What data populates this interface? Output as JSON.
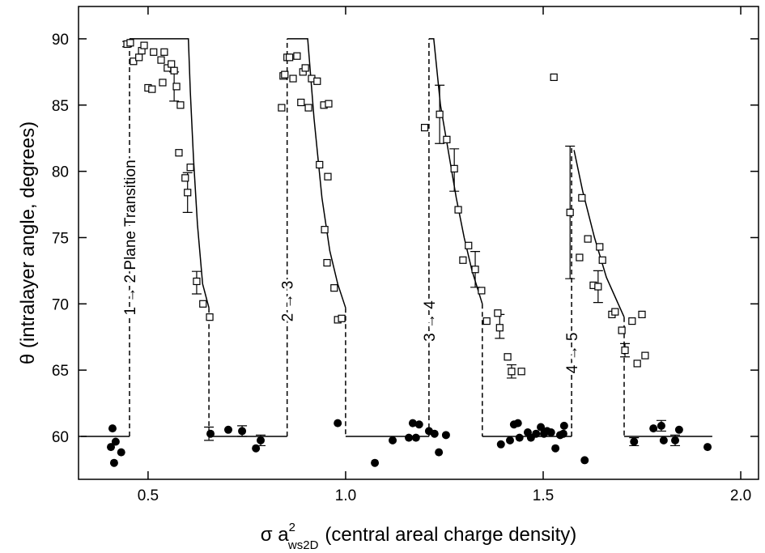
{
  "chart_data": {
    "type": "scatter",
    "xlabel": {
      "prefix": "σ a",
      "sup": "2",
      "sub": "ws2D",
      "suffix": "(central areal charge density)"
    },
    "ylabel": "θ  (intralayer angle, degrees)",
    "xlim": [
      0.324,
      2.045
    ],
    "ylim": [
      56.76,
      92.44
    ],
    "xticks": [
      0.5,
      {
        "value": 1,
        "label": "1.0"
      },
      1.5,
      {
        "value": 2,
        "label": "2.0"
      }
    ],
    "yticks": [
      60,
      65,
      70,
      75,
      80,
      85,
      90
    ],
    "annotations": [
      {
        "text": "1 → 2 Plane Transition",
        "x": 0.453,
        "y": 75
      },
      {
        "text": "2 → 3",
        "x": 0.852,
        "y": 70.2
      },
      {
        "text": "3 → 4",
        "x": 1.211,
        "y": 68.7
      },
      {
        "text": "4 → 5",
        "x": 1.572,
        "y": 66.3
      }
    ],
    "series": [
      {
        "kind": "points",
        "marker": "square",
        "color": "#000",
        "x": [
          0.447,
          0.455,
          0.463,
          0.477,
          0.484,
          0.49,
          0.5,
          0.51,
          0.514,
          0.533,
          0.537,
          0.541,
          0.549,
          0.559,
          0.566,
          0.572,
          0.582,
          0.578,
          0.594,
          0.6,
          0.607,
          0.623,
          0.639,
          0.656,
          0.838,
          0.842,
          0.846,
          0.852,
          0.858,
          0.867,
          0.877,
          0.887,
          0.892,
          0.898,
          0.906,
          0.914,
          0.928,
          0.934,
          0.945,
          0.947,
          0.957,
          0.953,
          0.955,
          0.971,
          0.98,
          0.99,
          1.2,
          1.238,
          1.256,
          1.275,
          1.285,
          1.297,
          1.311,
          1.328,
          1.344,
          1.357,
          1.385,
          1.39,
          1.41,
          1.42,
          1.445,
          1.527,
          1.568,
          1.592,
          1.598,
          1.613,
          1.627,
          1.639,
          1.643,
          1.65,
          1.674,
          1.682,
          1.699,
          1.707,
          1.725,
          1.738,
          1.75,
          1.758
        ],
        "values": [
          89.6,
          89.7,
          88.3,
          88.6,
          89.1,
          89.5,
          86.3,
          86.2,
          89,
          88.4,
          86.7,
          89,
          87.8,
          88.1,
          87.6,
          86.4,
          85,
          81.4,
          79.5,
          78.4,
          80.3,
          71.7,
          70,
          69,
          84.8,
          87.2,
          87.3,
          88.6,
          88.6,
          87,
          88.7,
          85.2,
          87.5,
          87.8,
          84.8,
          87,
          86.8,
          80.5,
          85,
          75.6,
          85.1,
          73.1,
          79.6,
          71.2,
          68.8,
          68.9,
          83.3,
          84.3,
          82.4,
          80.2,
          77.1,
          73.3,
          74.4,
          72.6,
          71,
          68.7,
          69.3,
          68.2,
          66,
          64.9,
          64.9,
          87.1,
          76.9,
          73.5,
          78,
          74.9,
          71.4,
          71.3,
          74.3,
          73.3,
          69.2,
          69.4,
          68,
          66.5,
          68.7,
          65.5,
          69.2,
          66.1
        ]
      },
      {
        "kind": "points",
        "marker": "circle",
        "color": "#000",
        "x": [
          0.406,
          0.41,
          0.418,
          0.414,
          0.432,
          0.658,
          0.703,
          0.738,
          0.773,
          0.785,
          0.98,
          1.074,
          1.119,
          1.16,
          1.17,
          1.178,
          1.186,
          1.211,
          1.225,
          1.236,
          1.254,
          1.393,
          1.416,
          1.426,
          1.436,
          1.44,
          1.461,
          1.469,
          1.482,
          1.494,
          1.502,
          1.51,
          1.52,
          1.531,
          1.543,
          1.551,
          1.553,
          1.605,
          1.73,
          1.779,
          1.799,
          1.805,
          1.834,
          1.844,
          1.916
        ],
        "values": [
          59.2,
          60.6,
          59.6,
          58,
          58.8,
          60.2,
          60.5,
          60.4,
          59.1,
          59.7,
          61,
          58,
          59.7,
          59.9,
          61,
          59.9,
          60.9,
          60.4,
          60.2,
          58.8,
          60.1,
          59.4,
          59.7,
          60.9,
          61,
          59.9,
          60.3,
          59.9,
          60.2,
          60.7,
          60.2,
          60.4,
          60.3,
          59.1,
          60.1,
          60.2,
          60.8,
          58.2,
          59.6,
          60.6,
          60.8,
          59.7,
          59.7,
          60.5,
          59.2
        ]
      },
      {
        "kind": "errorbars",
        "color": "#000",
        "x": [
          0.447,
          0.566,
          0.6,
          0.623,
          0.654,
          0.738,
          0.785,
          1.238,
          1.275,
          1.328,
          1.39,
          1.42,
          1.568,
          1.639,
          1.707,
          1.73,
          1.799,
          1.834
        ],
        "values": [
          89.6,
          86.4,
          78.4,
          71.6,
          60.2,
          60.4,
          59.7,
          84.3,
          80.1,
          72.6,
          68.3,
          64.9,
          76.9,
          71.3,
          66.5,
          59.6,
          60.8,
          59.7
        ],
        "errors": [
          0.2,
          1.1,
          1.5,
          0.85,
          0.5,
          0.4,
          0.4,
          2.2,
          1.6,
          1.35,
          0.9,
          0.5,
          5,
          1.2,
          0.5,
          0.3,
          0.4,
          0.4
        ]
      },
      {
        "kind": "line",
        "dash": false,
        "color": "#000",
        "x": [
          0.33,
          0.453,
          null,
          0.453,
          0.602,
          0.607,
          0.615,
          0.625,
          0.638,
          0.654,
          null,
          0.654,
          0.852,
          null,
          0.852,
          0.904,
          0.92,
          0.94,
          0.96,
          0.98,
          1.0,
          null,
          1.0,
          1.211,
          null,
          1.211,
          1.223,
          1.24,
          1.26,
          1.28,
          1.3,
          1.32,
          1.346,
          null,
          1.346,
          1.572,
          null,
          1.578,
          1.6,
          1.63,
          1.66,
          1.69,
          1.705,
          null,
          1.705,
          1.928
        ],
        "values": [
          60,
          60,
          null,
          90,
          90,
          86,
          81,
          76,
          71.5,
          69.7,
          null,
          60,
          60,
          null,
          90,
          90,
          84,
          78,
          74,
          71.5,
          69.7,
          null,
          60,
          60,
          null,
          90,
          90,
          85,
          81.5,
          78,
          75,
          72.5,
          70,
          null,
          60,
          60,
          null,
          81.6,
          78.5,
          75,
          72,
          70,
          69,
          null,
          60,
          60
        ]
      },
      {
        "kind": "line",
        "dash": true,
        "color": "#000",
        "x": [
          0.453,
          0.453,
          null,
          0.654,
          0.654,
          null,
          0.852,
          0.852,
          null,
          1.0,
          1.0,
          null,
          1.211,
          1.211,
          null,
          1.346,
          1.346,
          null,
          1.572,
          1.572,
          null,
          1.705,
          1.705
        ],
        "values": [
          60,
          90,
          null,
          69.7,
          60,
          null,
          60,
          90,
          null,
          69.7,
          60,
          null,
          60,
          90,
          null,
          70,
          60,
          null,
          60,
          81.9,
          null,
          69,
          60
        ]
      }
    ]
  }
}
